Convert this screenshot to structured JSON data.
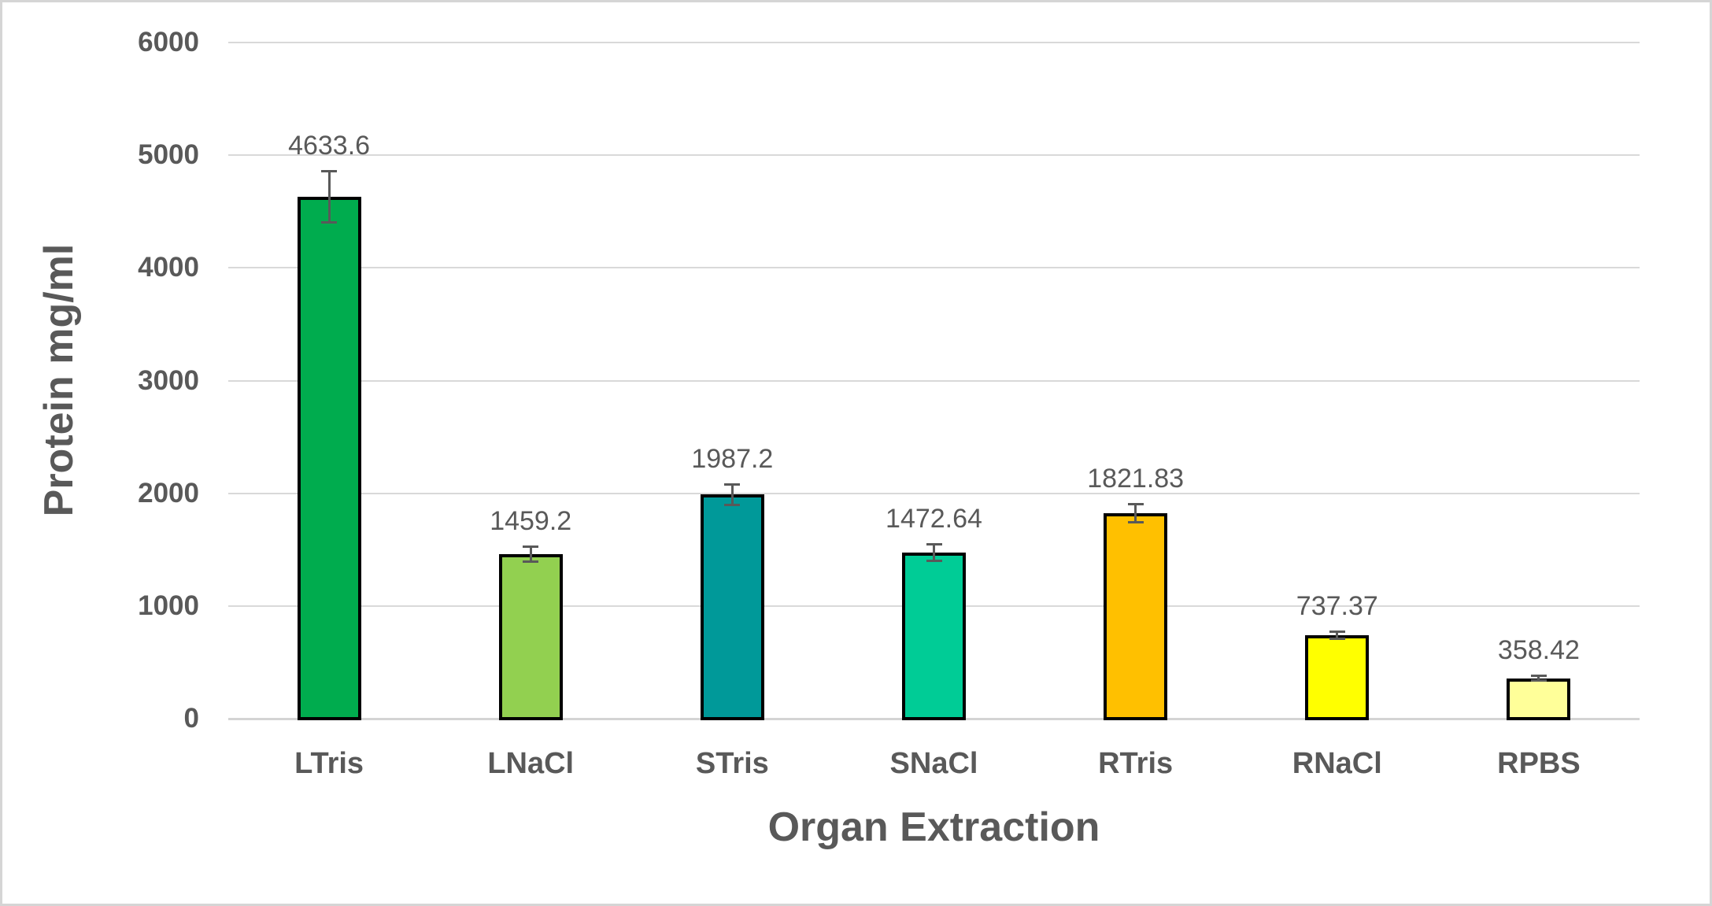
{
  "chart_data": {
    "type": "bar",
    "title": "",
    "xlabel": "Organ Extraction",
    "ylabel": "Protein mg/ml",
    "ylim": [
      0,
      6000
    ],
    "yticks": [
      0,
      1000,
      2000,
      3000,
      4000,
      5000,
      6000
    ],
    "ytick_labels": [
      "0",
      "1000",
      "2000",
      "3000",
      "4000",
      "5000",
      "6000"
    ],
    "grid": true,
    "legend": "none",
    "categories": [
      "LTris",
      "LNaCl",
      "STris",
      "SNaCl",
      "RTris",
      "RNaCl",
      "RPBS"
    ],
    "values": [
      4633.6,
      1459.2,
      1987.2,
      1472.64,
      1821.83,
      737.37,
      358.42
    ],
    "data_labels": [
      "4633.6",
      "1459.2",
      "1987.2",
      "1472.64",
      "1821.83",
      "737.37",
      "358.42"
    ],
    "error_bars": [
      230,
      70,
      95,
      75,
      85,
      35,
      25
    ],
    "bar_colors": [
      "#00AC4E",
      "#92D050",
      "#009999",
      "#00CC96",
      "#FFC000",
      "#FFFF00",
      "#FFFF99"
    ],
    "colors": {
      "bar_border": "#000000",
      "gridline": "#d9d9d9",
      "axis_line": "#d4d4d4",
      "error_bar": "#595959",
      "text": "#595959",
      "frame_border": "#d5d5d5",
      "background": "#ffffff"
    }
  }
}
